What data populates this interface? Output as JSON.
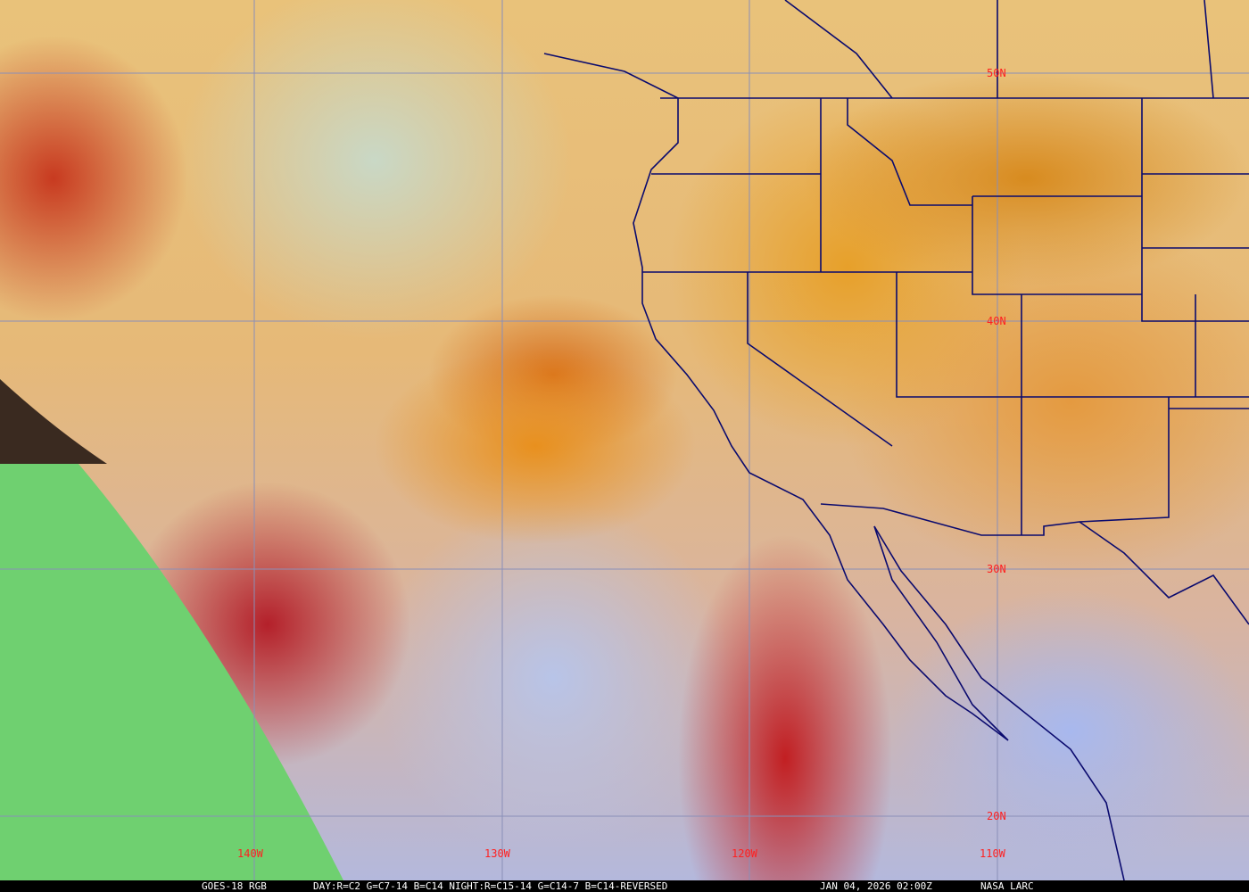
{
  "caption": {
    "satellite": "GOES-18 RGB",
    "recipe": "DAY:R=C2 G=C7-14 B=C14 NIGHT:R=C15-14 G=C14-7 B=C14-REVERSED",
    "datetime": "JAN 04, 2026 02:00Z",
    "source": "NASA LARC"
  },
  "grid": {
    "latitudes": [
      "50N",
      "40N",
      "30N",
      "20N"
    ],
    "longitudes": [
      "140W",
      "130W",
      "120W",
      "110W"
    ],
    "line_color": "#8a8fb8",
    "label_color": "#ff2020"
  },
  "boundaries_color": "#0a0a6e"
}
